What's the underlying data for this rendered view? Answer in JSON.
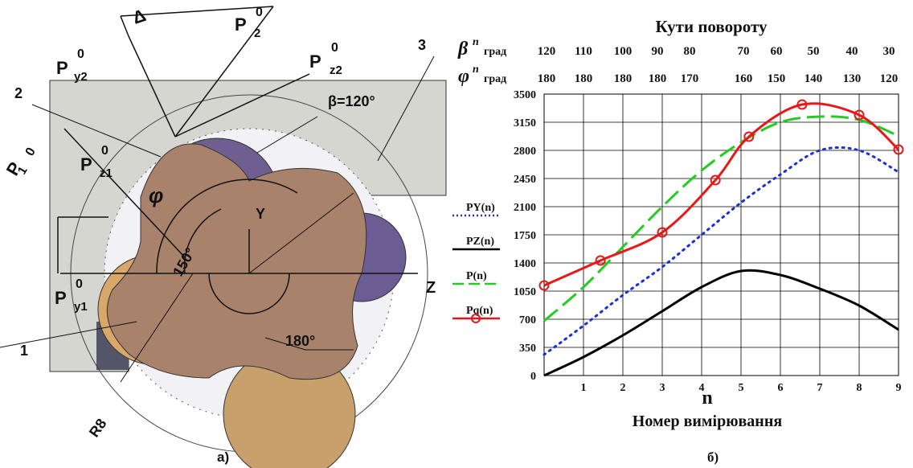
{
  "figure_a": {
    "caption": "а)",
    "labels": {
      "delta": "Δ",
      "n3": "3",
      "n2": "2",
      "n1": "1",
      "beta": "β=120°",
      "phi": "φ",
      "y": "Y",
      "z": "Z",
      "a150": "150°",
      "a180": "180°",
      "r8": "R8",
      "py2": {
        "base": "P",
        "sub": "y2",
        "sup": "0"
      },
      "p2": {
        "base": "P",
        "sub": "2",
        "sup": "0"
      },
      "pz2": {
        "base": "P",
        "sub": "z2",
        "sup": "0"
      },
      "p1": {
        "base": "P",
        "sub": "1",
        "sup": "0"
      },
      "pz1": {
        "base": "P",
        "sub": "z1",
        "sup": "0"
      },
      "py1": {
        "base": "P",
        "sub": "y1",
        "sup": "0"
      }
    }
  },
  "chart_data": {
    "type": "line",
    "caption": "б)",
    "title": "Кути повороту",
    "x_label": "n",
    "x_label2": "Номер вимірювання",
    "top_rows": [
      {
        "symbol": "β",
        "sup": "n",
        "unit": "град",
        "values": [
          120,
          110,
          100,
          90,
          80,
          70,
          60,
          50,
          40,
          30
        ]
      },
      {
        "symbol": "φ",
        "sup": "n",
        "unit": "град",
        "values": [
          180,
          180,
          180,
          180,
          170,
          160,
          150,
          140,
          130,
          120
        ]
      }
    ],
    "x": [
      0,
      1,
      2,
      3,
      4,
      5,
      6,
      7,
      8,
      9
    ],
    "xlim": [
      0,
      9
    ],
    "xticks": [
      1,
      2,
      3,
      4,
      5,
      6,
      7,
      8,
      9
    ],
    "ylim": [
      0,
      3500
    ],
    "yticks": [
      0,
      350,
      700,
      1050,
      1400,
      1750,
      2100,
      2450,
      2800,
      3150,
      3500
    ],
    "grid": true,
    "series": [
      {
        "name": "PY(n)",
        "color": "#1a2fd6",
        "style": "dotted",
        "values": [
          260,
          620,
          1000,
          1350,
          1750,
          2150,
          2500,
          2800,
          2800,
          2530
        ]
      },
      {
        "name": "PZ(n)",
        "color": "#000000",
        "style": "solid",
        "values": [
          0,
          230,
          500,
          800,
          1100,
          1300,
          1250,
          1080,
          870,
          570
        ]
      },
      {
        "name": "P(n)",
        "color": "#22cc22",
        "style": "dashed",
        "values": [
          680,
          1100,
          1600,
          2100,
          2550,
          2900,
          3150,
          3220,
          3180,
          2980
        ]
      },
      {
        "name": "Pq(n)",
        "color": "#e81818",
        "style": "marker",
        "x": [
          0,
          1.43,
          3,
          4.35,
          5.2,
          6.55,
          8,
          9
        ],
        "values": [
          1120,
          1430,
          1780,
          2430,
          2970,
          3370,
          3240,
          2810
        ]
      }
    ]
  }
}
